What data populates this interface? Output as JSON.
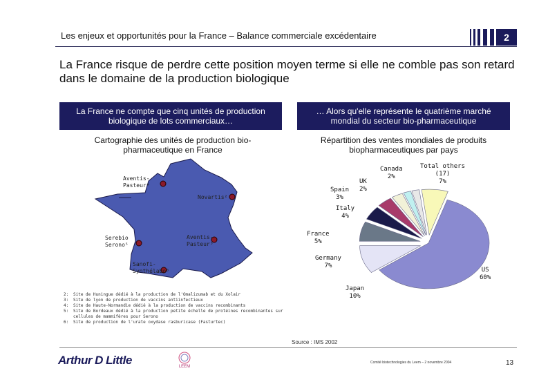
{
  "header": {
    "title": "Les enjeux et opportunités pour la France – Balance commerciale excédentaire",
    "slide_number": "2"
  },
  "headline": "La France risque de perdre cette position moyen terme si elle ne comble pas son retard dans le domaine de la production biologique",
  "left_panel": {
    "box_title": "La France ne compte que cinq unités de production biologique de lots commerciaux…",
    "subtitle": "Cartographie des unités de production bio-pharmaceutique en France",
    "sites": [
      {
        "label": "Aventis-",
        "label2": "Pasteur⁴"
      },
      {
        "label": "Novartis²",
        "label2": ""
      },
      {
        "label": "Aventis-",
        "label2": "Pasteur³"
      },
      {
        "label": "Serebio",
        "label2": "Serono⁵"
      },
      {
        "label": "Sanofi-",
        "label2": "Synthélabo⁶"
      }
    ],
    "notes": [
      {
        "num": "2:",
        "text": "Site de Huningue dédié à la production de l'Omalizumab et du Xolair"
      },
      {
        "num": "3:",
        "text": "Site de lyon de production de vaccins antiinfectieux"
      },
      {
        "num": "4:",
        "text": "Site de Haute-Normandie dédié à la production de vaccins recombinants"
      },
      {
        "num": "5:",
        "text": "Site de Bordeaux dédié à la production petite échelle de protéines recombinantes sur cellules de mammifères pour Serono"
      },
      {
        "num": "6:",
        "text": "Site de production de l'urate oxydase rasburicase (Fasturtec)"
      }
    ]
  },
  "right_panel": {
    "box_title": "… Alors qu'elle représente le quatrième marché mondial du secteur bio-pharmaceutique",
    "subtitle": "Répartition des ventes mondiales de produits biopharmaceutiques par pays"
  },
  "chart_data": {
    "type": "pie",
    "title": "Répartition des ventes mondiales de produits biopharmaceutiques par pays",
    "slices": [
      {
        "name": "US",
        "value": 60,
        "label": "US",
        "pct": "60%",
        "color": "#8a8ad0"
      },
      {
        "name": "Japan",
        "value": 10,
        "label": "Japan",
        "pct": "10%",
        "color": "#e4e4f6"
      },
      {
        "name": "Germany",
        "value": 7,
        "label": "Germany",
        "pct": "7%",
        "color": "#6a7888"
      },
      {
        "name": "France",
        "value": 5,
        "label": "France",
        "pct": "5%",
        "color": "#1a1a4a"
      },
      {
        "name": "Italy",
        "value": 4,
        "label": "Italy",
        "pct": "4%",
        "color": "#a83a6a"
      },
      {
        "name": "Spain",
        "value": 3,
        "label": "Spain",
        "pct": "3%",
        "color": "#f2f2d8"
      },
      {
        "name": "UK",
        "value": 2,
        "label": "UK",
        "pct": "2%",
        "color": "#c0f0f0"
      },
      {
        "name": "Canada",
        "value": 2,
        "label": "Canada",
        "pct": "2%",
        "color": "#e8e8e8"
      },
      {
        "name": "Total others (17)",
        "value": 7,
        "label": "Total others",
        "label2": "(17)",
        "pct": "7%",
        "color": "#f8f8b8"
      }
    ]
  },
  "footer": {
    "source": "Source : IMS 2002",
    "logo": "Arthur D Little",
    "partner_logo_text": "LEEM",
    "text": "Comité biotechnologies du Leem – 2 novembre 2004",
    "page_number": "13"
  }
}
